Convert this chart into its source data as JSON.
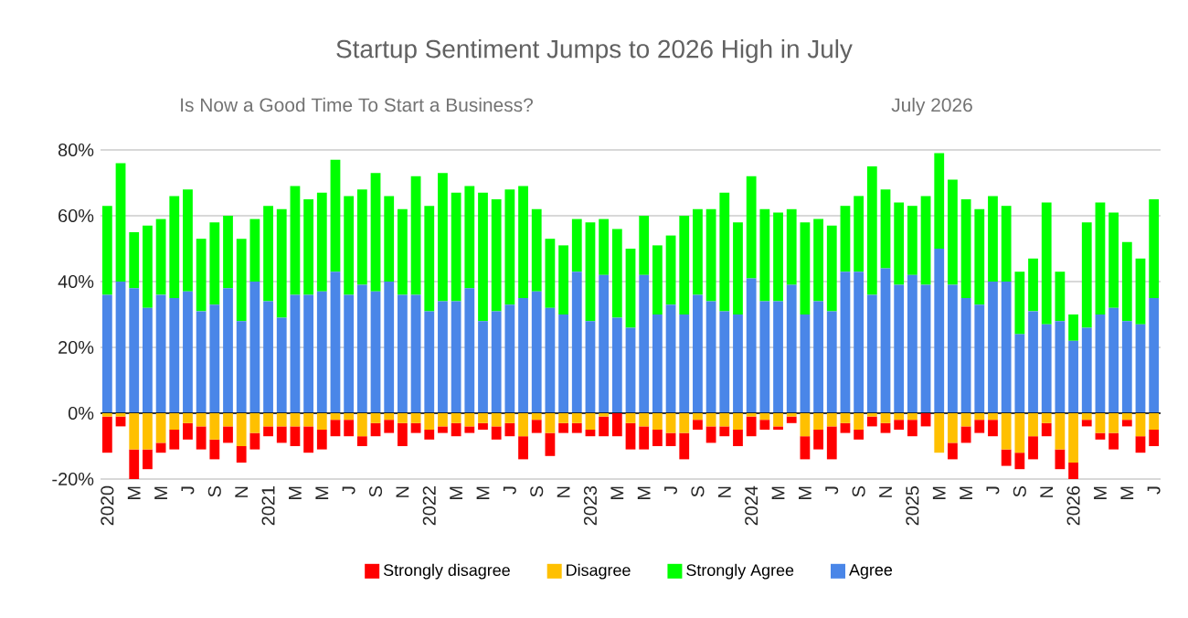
{
  "chart_data": {
    "type": "bar",
    "stacked": true,
    "title": "Startup Sentiment Jumps to 2026 High in July",
    "subtitle": "Is Now a Good Time To Start a Business?",
    "annotations": [
      "July 2026"
    ],
    "categories": [
      "2020",
      null,
      "M",
      null,
      "M",
      null,
      "J",
      null,
      "S",
      null,
      "N",
      null,
      "2021",
      null,
      "M",
      null,
      "M",
      null,
      "J",
      null,
      "S",
      null,
      "N",
      null,
      "2022",
      null,
      "M",
      null,
      "M",
      null,
      "J",
      null,
      "S",
      null,
      "N",
      null,
      "2023",
      null,
      "M",
      null,
      "M",
      null,
      "J",
      null,
      "S",
      null,
      "N",
      null,
      "2024",
      null,
      "M",
      null,
      "M",
      null,
      "J",
      null,
      "S",
      null,
      "N",
      null,
      "2025",
      null,
      "M",
      null,
      "M",
      null,
      "J",
      null,
      "S",
      null,
      "N",
      null,
      "2026",
      null,
      "M",
      null,
      "M",
      null,
      "J"
    ],
    "series": [
      {
        "name": "Agree",
        "color": "#4a86e8",
        "values": [
          36,
          40,
          38,
          32,
          36,
          35,
          37,
          31,
          33,
          38,
          28,
          40,
          34,
          29,
          36,
          36,
          37,
          43,
          36,
          39,
          37,
          40,
          36,
          36,
          31,
          34,
          34,
          38,
          28,
          31,
          33,
          35,
          37,
          32,
          30,
          43,
          28,
          42,
          29,
          26,
          42,
          30,
          33,
          30,
          36,
          34,
          31,
          30,
          41,
          34,
          34,
          39,
          30,
          34,
          31,
          43,
          43,
          36,
          44,
          39,
          42,
          39,
          50,
          39,
          35,
          33,
          40,
          40,
          24,
          31,
          27,
          28,
          22,
          26,
          30,
          32,
          28,
          27,
          35
        ]
      },
      {
        "name": "Strongly Agree",
        "color": "#00ff00",
        "values": [
          27,
          36,
          17,
          25,
          23,
          31,
          31,
          22,
          25,
          22,
          25,
          19,
          29,
          33,
          33,
          29,
          30,
          34,
          30,
          29,
          36,
          26,
          26,
          36,
          32,
          39,
          33,
          31,
          39,
          34,
          35,
          34,
          25,
          21,
          21,
          16,
          30,
          17,
          27,
          24,
          18,
          21,
          21,
          30,
          26,
          28,
          36,
          28,
          31,
          28,
          27,
          23,
          28,
          25,
          26,
          20,
          23,
          39,
          24,
          25,
          21,
          27,
          29,
          32,
          30,
          29,
          26,
          23,
          19,
          16,
          37,
          15,
          8,
          32,
          34,
          29,
          24,
          20,
          30
        ]
      },
      {
        "name": "Disagree",
        "color": "#ffc000",
        "values": [
          -1,
          -1,
          -11,
          -11,
          -9,
          -5,
          -3,
          -4,
          -8,
          -4,
          -10,
          -6,
          -4,
          -4,
          -4,
          -4,
          -5,
          -2,
          -2,
          -7,
          -3,
          -2,
          -3,
          -3,
          -5,
          -4,
          -3,
          -4,
          -3,
          -4,
          -3,
          -7,
          -2,
          -6,
          -3,
          -3,
          -5,
          -1,
          0,
          -3,
          -4,
          -5,
          -6,
          -6,
          -2,
          -4,
          -4,
          -5,
          -1,
          -2,
          -4,
          -1,
          -7,
          -5,
          -4,
          -3,
          -5,
          -1,
          -3,
          -2,
          -2,
          0,
          -12,
          -9,
          -4,
          -2,
          -2,
          -11,
          -12,
          -7,
          -3,
          -11,
          -15,
          -2,
          -6,
          -6,
          -2,
          -7,
          -5
        ]
      },
      {
        "name": "Strongly disagree",
        "color": "#ff0000",
        "values": [
          -11,
          -3,
          -9,
          -6,
          -3,
          -6,
          -5,
          -7,
          -6,
          -5,
          -5,
          -5,
          -3,
          -5,
          -6,
          -8,
          -6,
          -5,
          -5,
          -3,
          -4,
          -4,
          -7,
          -3,
          -3,
          -2,
          -4,
          -2,
          -2,
          -4,
          -4,
          -7,
          -4,
          -7,
          -3,
          -3,
          -2,
          -6,
          -7,
          -8,
          -7,
          -5,
          -4,
          -8,
          -3,
          -5,
          -3,
          -5,
          -6,
          -3,
          -1,
          -2,
          -7,
          -6,
          -10,
          -3,
          -3,
          -3,
          -3,
          -3,
          -5,
          -4,
          0,
          -5,
          -5,
          -4,
          -5,
          -5,
          -5,
          -7,
          -4,
          -6,
          -5,
          -2,
          -2,
          -5,
          -2,
          -5,
          -5
        ]
      }
    ],
    "ylim": [
      -20,
      80
    ],
    "yticks": [
      {
        "value": -20,
        "label": "-20%"
      },
      {
        "value": 0,
        "label": "0%"
      },
      {
        "value": 20,
        "label": "20%"
      },
      {
        "value": 40,
        "label": "40%"
      },
      {
        "value": 60,
        "label": "60%"
      },
      {
        "value": 80,
        "label": "80%"
      }
    ],
    "grid": "y",
    "legend": "bottom"
  }
}
